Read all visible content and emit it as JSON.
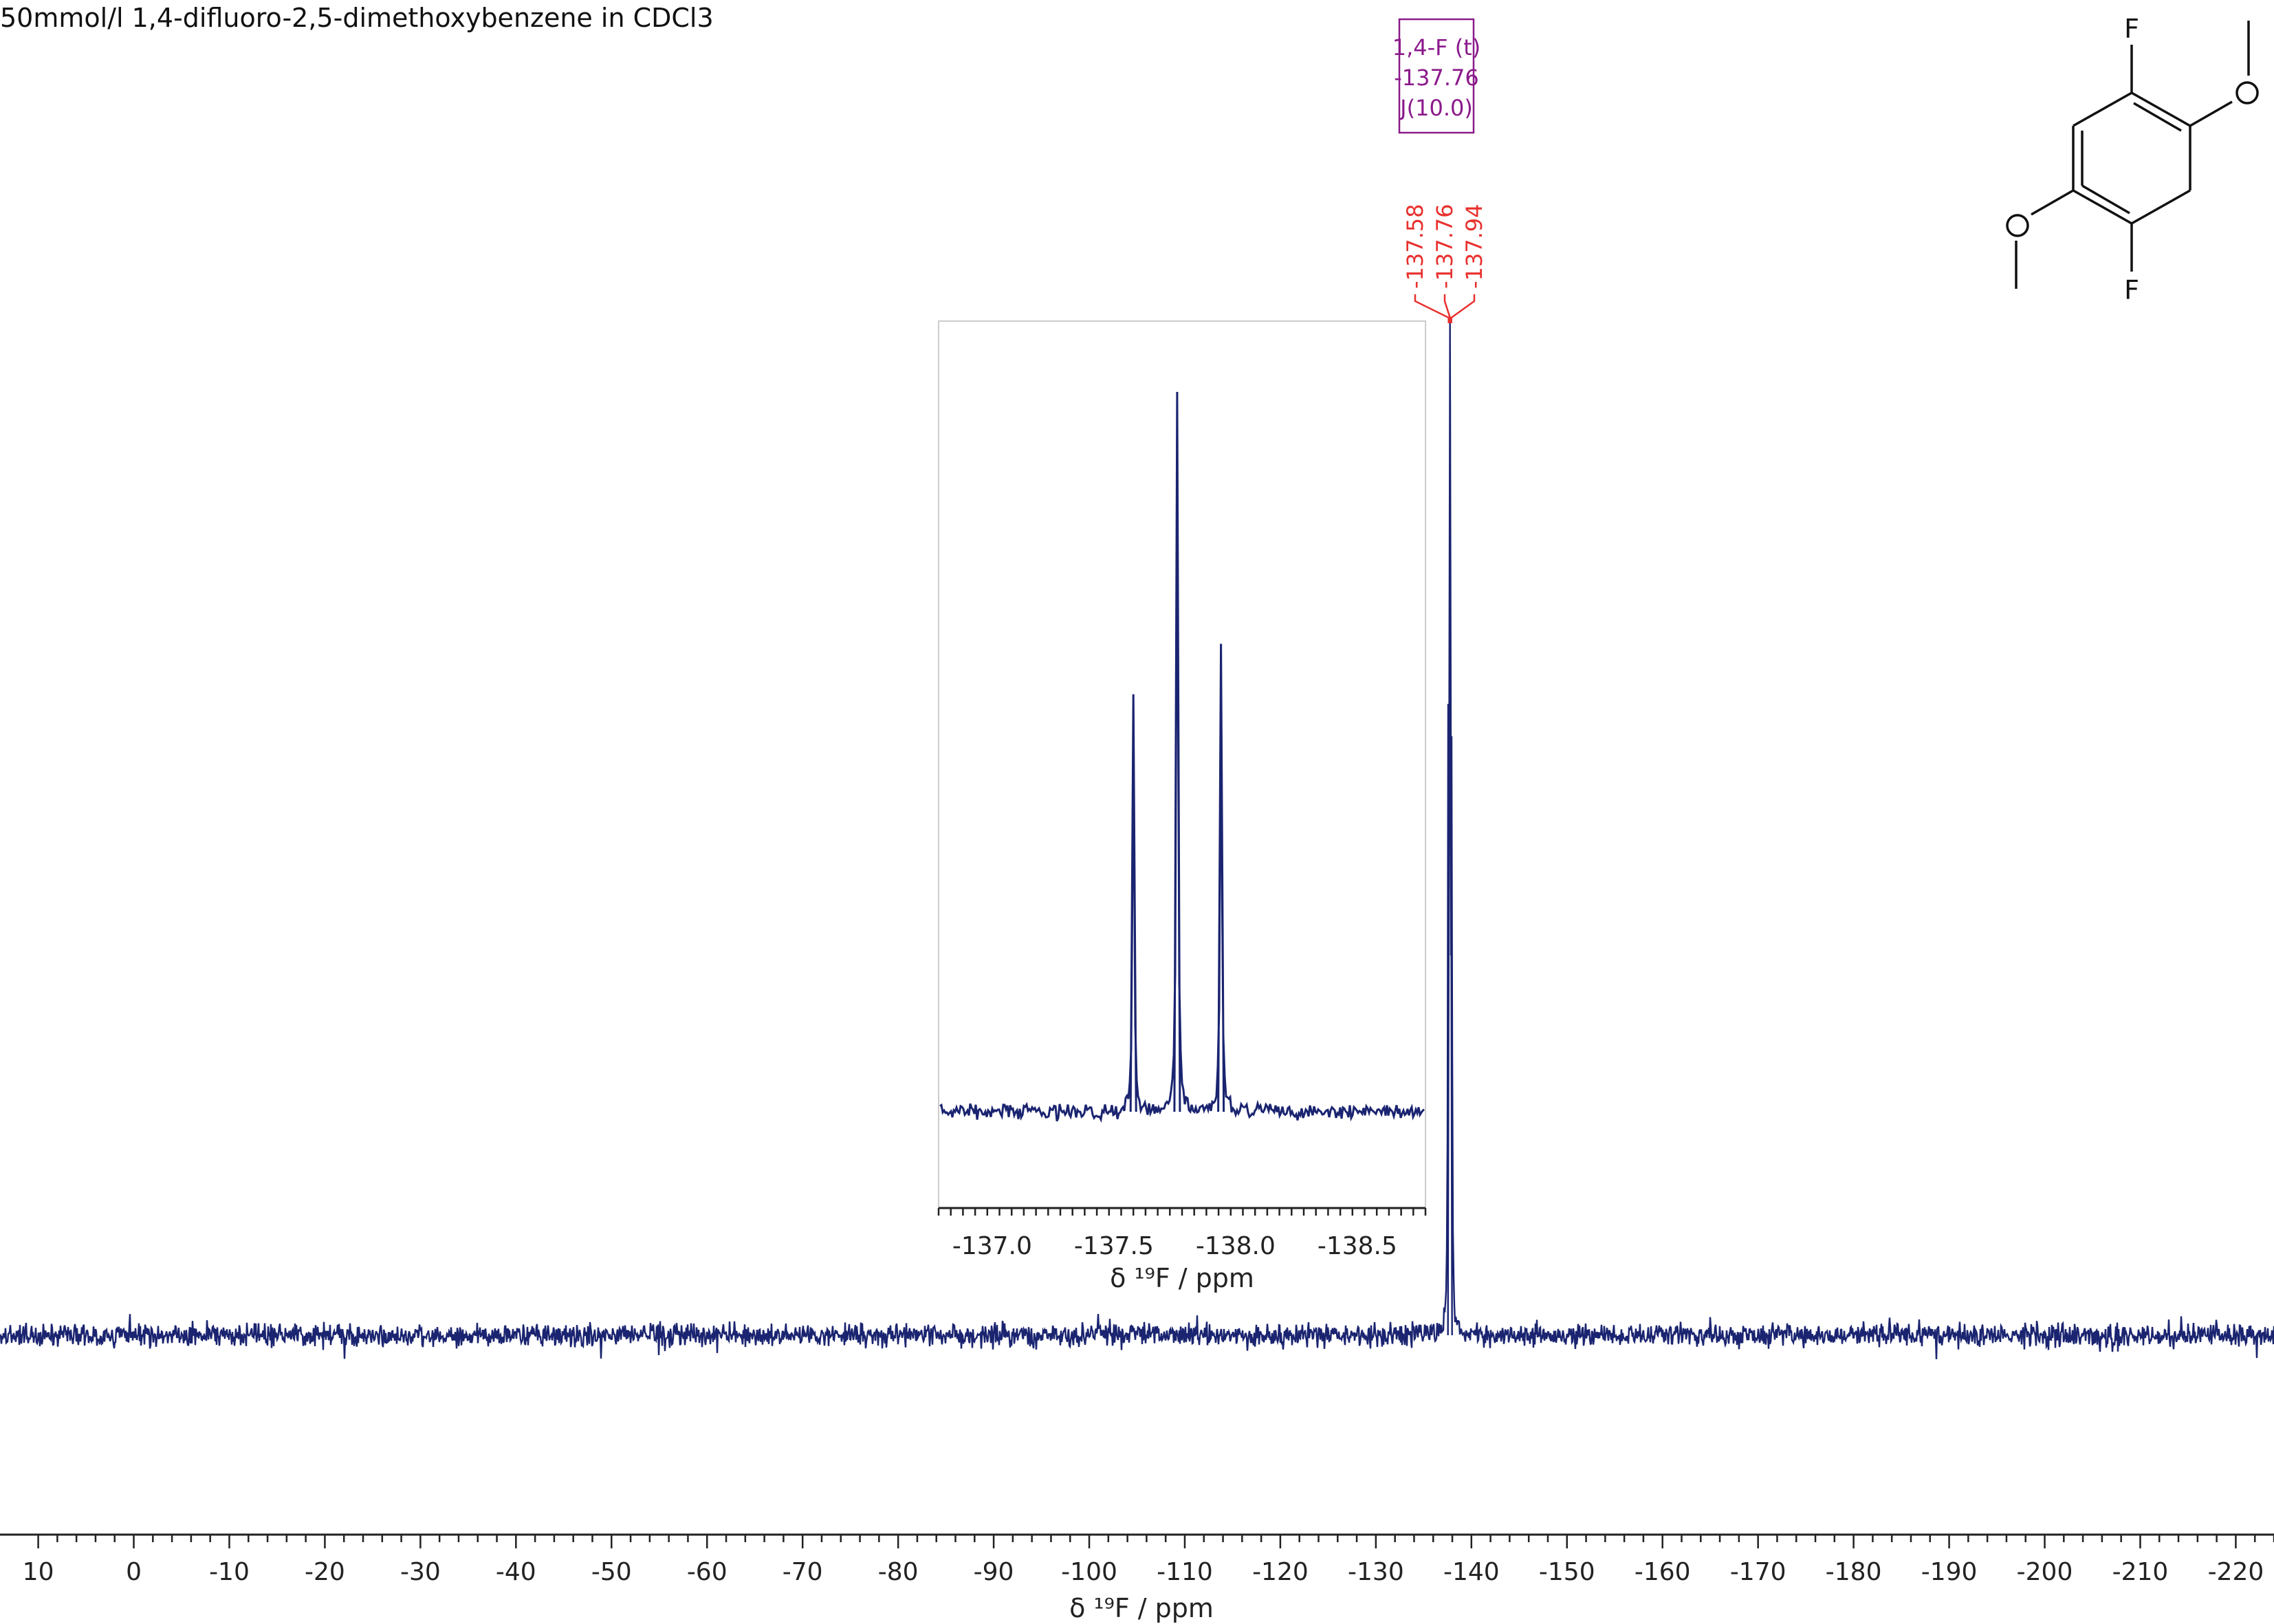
{
  "title": "50mmol/l 1,4-difluoro-2,5-dimethoxybenzene in CDCl3",
  "colors": {
    "spectrum": "#1a2470",
    "peak_label": "#e8302e",
    "multiplet": "#8b1a8b"
  },
  "chart_data": [
    {
      "id": "main-spectrum",
      "type": "line",
      "title": "",
      "xlabel": "δ ¹⁹F / ppm",
      "ylabel": "",
      "xlim": [
        14,
        -224
      ],
      "x_reversed": true,
      "grid": false,
      "x_ticks": [
        10,
        0,
        -10,
        -20,
        -30,
        -40,
        -50,
        -60,
        -70,
        -80,
        -90,
        -100,
        -110,
        -120,
        -130,
        -140,
        -150,
        -160,
        -170,
        -180,
        -190,
        -200,
        -210,
        -220
      ],
      "x_tick_labels": [
        "10",
        "0",
        "-10",
        "-20",
        "-30",
        "-40",
        "-50",
        "-60",
        "-70",
        "-80",
        "-90",
        "-100",
        "-110",
        "-120",
        "-130",
        "-140",
        "-150",
        "-160",
        "-170",
        "-180",
        "-190",
        "-200",
        "-210",
        "-220"
      ],
      "series": [
        {
          "peaks": [
            {
              "x": -137.58,
              "rel_height": 0.6
            },
            {
              "x": -137.76,
              "rel_height": 1.0
            },
            {
              "x": -137.94,
              "rel_height": 0.54
            }
          ]
        }
      ],
      "peak_labels": [
        "-137.58",
        "-137.76",
        "-137.94"
      ],
      "multiplet": {
        "line1": "1,4-F (t)",
        "line2": "-137.76",
        "line3": "J(10.0)"
      }
    },
    {
      "id": "inset",
      "type": "line",
      "title": "",
      "xlabel": "δ ¹⁹F / ppm",
      "xlim": [
        -136.78,
        -138.78
      ],
      "x_reversed": true,
      "x_ticks": [
        -137.0,
        -137.5,
        -138.0,
        -138.5
      ],
      "x_tick_labels": [
        "-137.0",
        "-137.5",
        "-138.0",
        "-138.5"
      ],
      "series": [
        {
          "peaks": [
            {
              "x": -137.58,
              "rel_height": 0.58
            },
            {
              "x": -137.76,
              "rel_height": 1.0
            },
            {
              "x": -137.94,
              "rel_height": 0.65
            }
          ]
        }
      ]
    }
  ],
  "structure": {
    "atom_labels": [
      "F",
      "F",
      "O",
      "O"
    ]
  }
}
